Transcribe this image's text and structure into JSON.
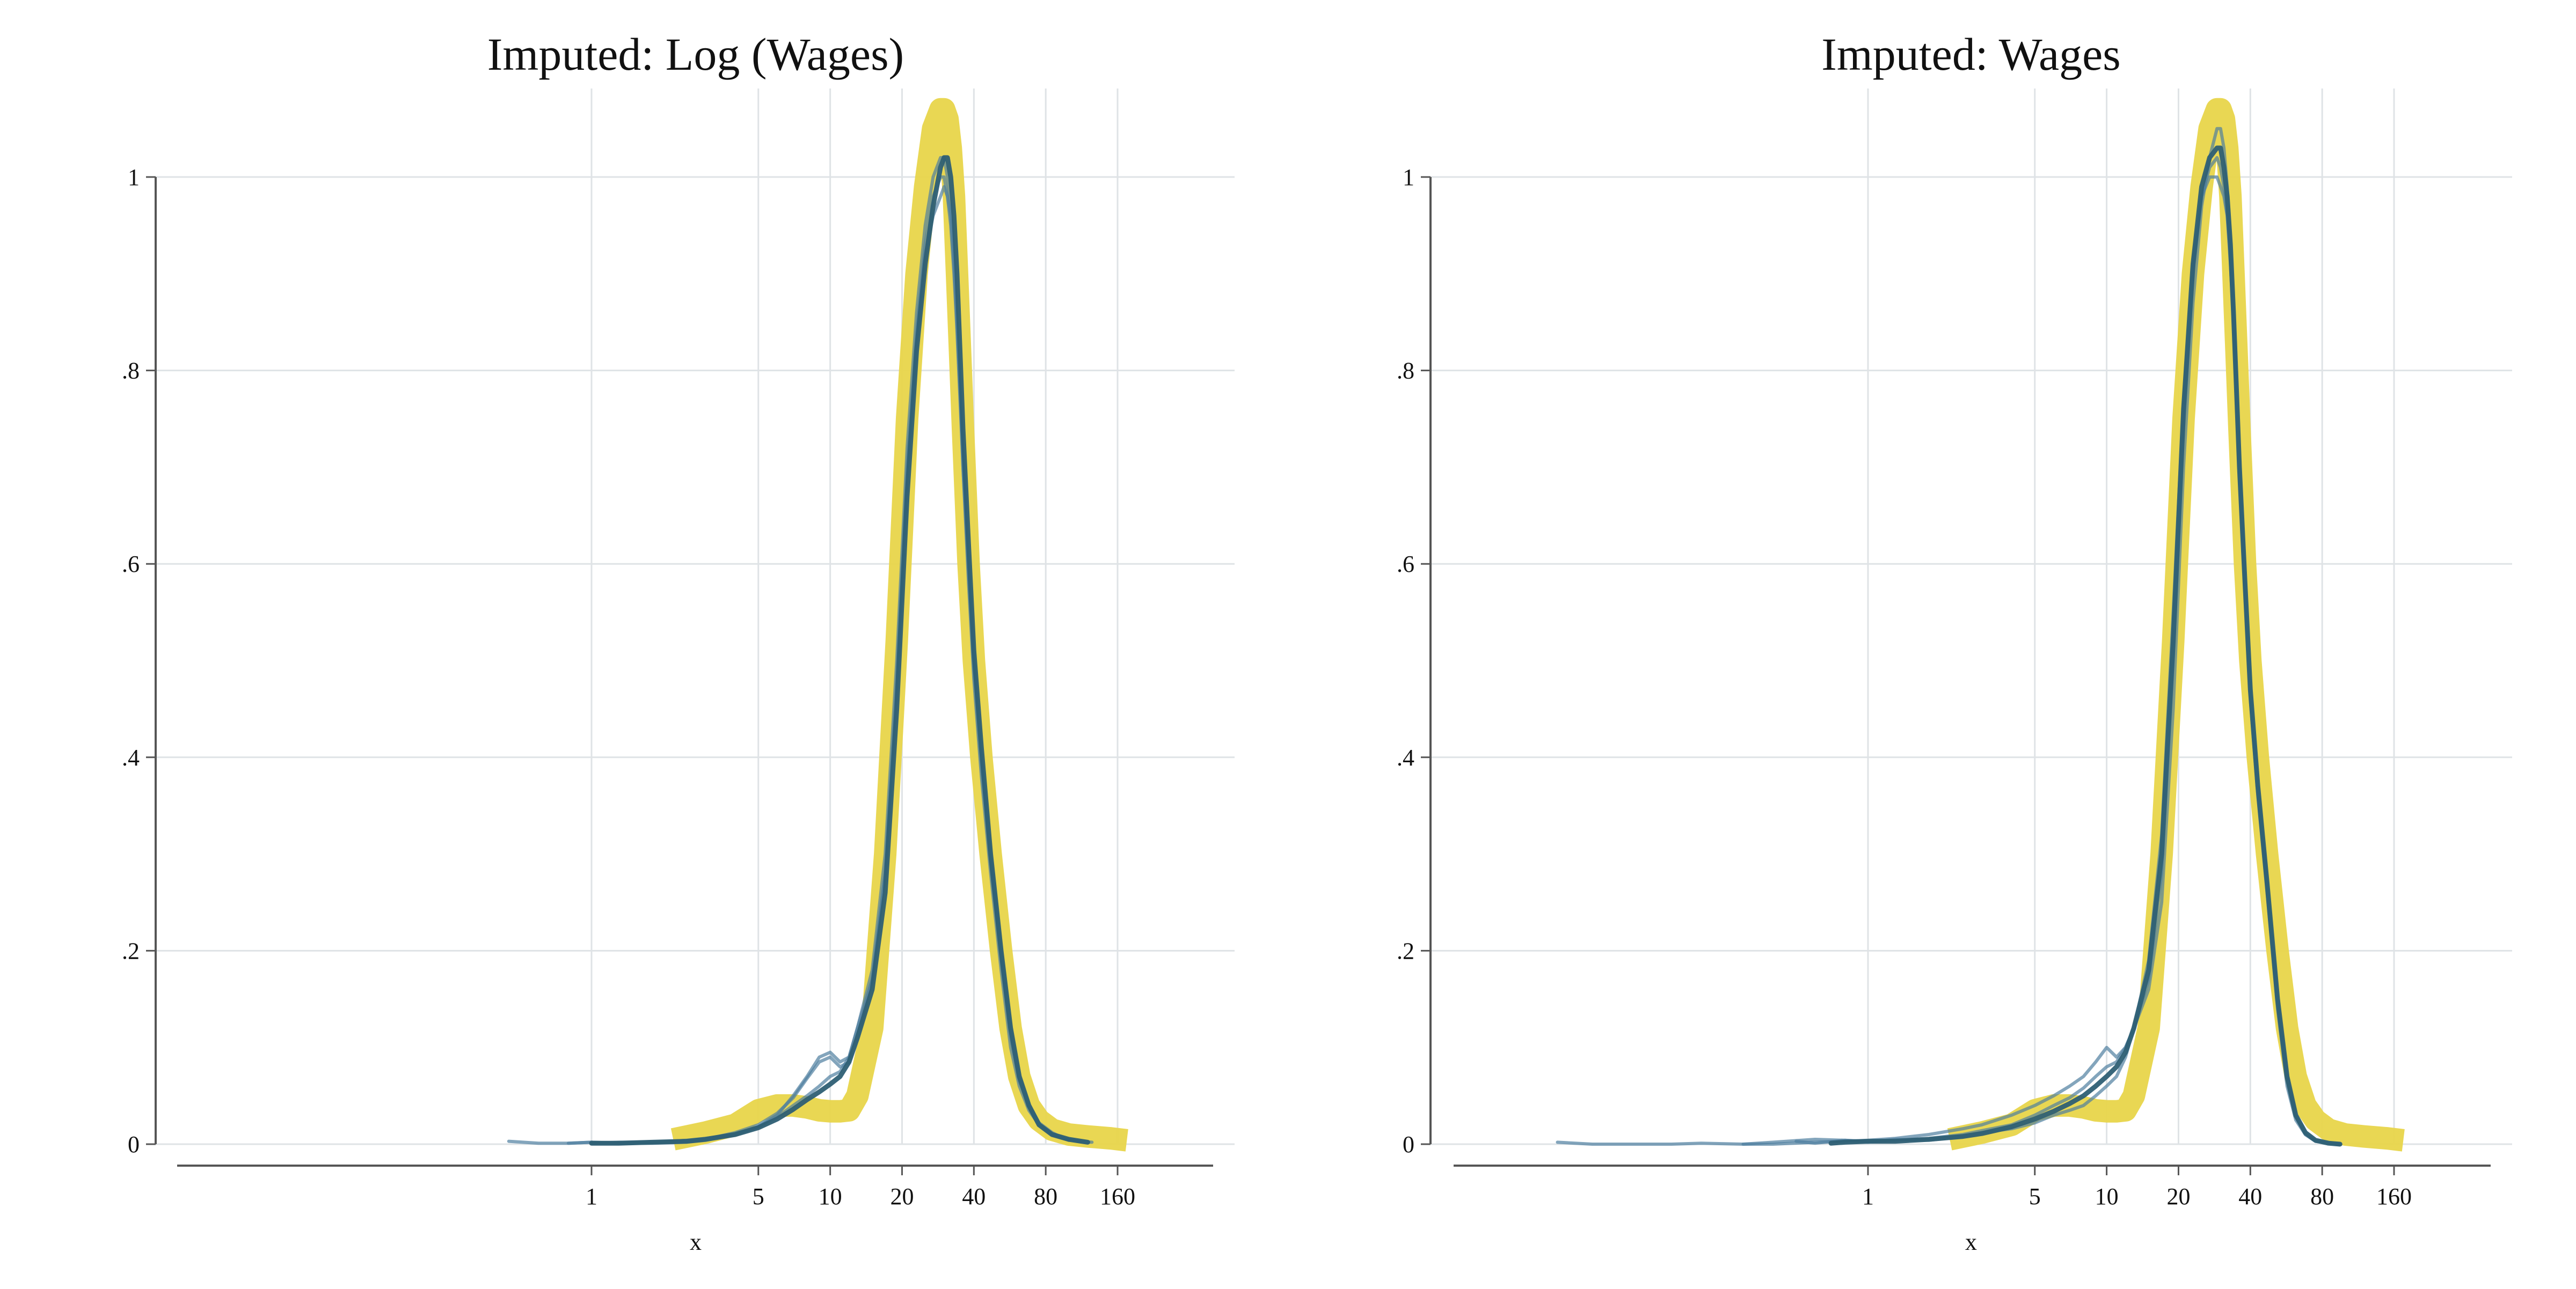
{
  "chart_data": [
    {
      "type": "line",
      "title": "Imputed: Log (Wages)",
      "xlabel": "x",
      "ylabel": "",
      "x_scale": "log",
      "x_ticks": [
        1,
        5,
        10,
        20,
        40,
        80,
        160
      ],
      "x_tick_labels": [
        "1",
        "5",
        "10",
        "20",
        "40",
        "80",
        "160"
      ],
      "ylim": [
        0,
        1
      ],
      "y_ticks": [
        0,
        0.2,
        0.4,
        0.6,
        0.8,
        1
      ],
      "y_tick_labels": [
        "0",
        ".2",
        ".4",
        ".6",
        ".8",
        "1"
      ],
      "grid": true,
      "legend": "none",
      "colors": {
        "observed": "#e8d54a",
        "imputed": "#4e7f9f",
        "imputed_dark": "#2e5f74"
      },
      "series": [
        {
          "role": "observed",
          "x": [
            2.2,
            3,
            4,
            5,
            6,
            7,
            8,
            9,
            10,
            11,
            12,
            13,
            15,
            17,
            19,
            21,
            23,
            25,
            27,
            29,
            30,
            31,
            32,
            33,
            34,
            35,
            36,
            38,
            40,
            43,
            47,
            52,
            57,
            62,
            68,
            75,
            85,
            100,
            120,
            150,
            175
          ],
          "values": [
            0.005,
            0.012,
            0.02,
            0.035,
            0.04,
            0.04,
            0.038,
            0.035,
            0.034,
            0.034,
            0.035,
            0.05,
            0.12,
            0.3,
            0.52,
            0.75,
            0.9,
            0.99,
            1.05,
            1.07,
            1.07,
            1.06,
            1.03,
            0.98,
            0.9,
            0.82,
            0.74,
            0.6,
            0.5,
            0.4,
            0.3,
            0.2,
            0.12,
            0.07,
            0.04,
            0.025,
            0.015,
            0.01,
            0.008,
            0.006,
            0.004
          ]
        },
        {
          "role": "imputed",
          "x": [
            0.45,
            0.6,
            0.8,
            1,
            1.3,
            1.8,
            2.5,
            3,
            4,
            5,
            6,
            7,
            8,
            9,
            10,
            11,
            12,
            13,
            15,
            17,
            19,
            21,
            23,
            25,
            27,
            29,
            30,
            31,
            32,
            33,
            34,
            35,
            36,
            38,
            40,
            43,
            47,
            52,
            57,
            62,
            68,
            75,
            85,
            95,
            110,
            125
          ],
          "values": [
            0.003,
            0.001,
            0.001,
            0.002,
            0.001,
            0.001,
            0.002,
            0.004,
            0.01,
            0.018,
            0.03,
            0.05,
            0.07,
            0.09,
            0.095,
            0.085,
            0.09,
            0.12,
            0.18,
            0.3,
            0.5,
            0.72,
            0.86,
            0.95,
            1.0,
            1.02,
            1.02,
            1.0,
            0.97,
            0.92,
            0.85,
            0.78,
            0.7,
            0.58,
            0.48,
            0.38,
            0.28,
            0.18,
            0.1,
            0.06,
            0.035,
            0.02,
            0.01,
            0.006,
            0.003,
            0.002
          ]
        },
        {
          "role": "imputed",
          "x": [
            0.8,
            1,
            1.3,
            1.8,
            2.5,
            3,
            4,
            5,
            6,
            7,
            8,
            9,
            10,
            11,
            12,
            13,
            15,
            17,
            19,
            21,
            23,
            25,
            27,
            29,
            30,
            31,
            32,
            33,
            34,
            35,
            36,
            38,
            40,
            43,
            47,
            52,
            57,
            62,
            68,
            75,
            85,
            95,
            110
          ],
          "values": [
            0.001,
            0.002,
            0.001,
            0.002,
            0.003,
            0.005,
            0.012,
            0.02,
            0.032,
            0.048,
            0.068,
            0.085,
            0.09,
            0.08,
            0.085,
            0.11,
            0.17,
            0.28,
            0.48,
            0.7,
            0.84,
            0.93,
            0.98,
            1.0,
            1.0,
            0.98,
            0.95,
            0.9,
            0.84,
            0.77,
            0.7,
            0.59,
            0.49,
            0.39,
            0.29,
            0.19,
            0.11,
            0.065,
            0.04,
            0.022,
            0.012,
            0.006,
            0.003
          ]
        },
        {
          "role": "imputed",
          "x": [
            1,
            1.3,
            1.8,
            2.5,
            3,
            4,
            5,
            6,
            7,
            8,
            9,
            10,
            11,
            12,
            13,
            15,
            17,
            19,
            21,
            23,
            25,
            27,
            29,
            30,
            31,
            32,
            33,
            34,
            35,
            36,
            38,
            40,
            43,
            47,
            52,
            57,
            62,
            68,
            75,
            85,
            100
          ],
          "values": [
            0.001,
            0.002,
            0.002,
            0.004,
            0.006,
            0.01,
            0.018,
            0.028,
            0.04,
            0.05,
            0.06,
            0.07,
            0.075,
            0.09,
            0.12,
            0.17,
            0.28,
            0.47,
            0.69,
            0.83,
            0.92,
            0.96,
            0.98,
            0.99,
            0.98,
            0.96,
            0.91,
            0.85,
            0.78,
            0.71,
            0.6,
            0.5,
            0.4,
            0.3,
            0.2,
            0.12,
            0.07,
            0.04,
            0.02,
            0.01,
            0.004
          ]
        },
        {
          "role": "imputed_dark",
          "x": [
            1,
            1.3,
            1.8,
            2.5,
            3,
            4,
            5,
            6,
            7,
            8,
            9,
            10,
            11,
            12,
            13,
            15,
            17,
            19,
            21,
            23,
            25,
            27,
            29,
            30,
            31,
            32,
            33,
            34,
            35,
            36,
            38,
            40,
            43,
            47,
            52,
            57,
            62,
            68,
            75,
            85,
            100,
            120
          ],
          "values": [
            0.001,
            0.001,
            0.002,
            0.003,
            0.005,
            0.01,
            0.017,
            0.026,
            0.036,
            0.046,
            0.054,
            0.062,
            0.07,
            0.085,
            0.11,
            0.16,
            0.26,
            0.45,
            0.67,
            0.82,
            0.91,
            0.97,
            1.01,
            1.02,
            1.02,
            1.0,
            0.96,
            0.9,
            0.82,
            0.74,
            0.62,
            0.51,
            0.41,
            0.3,
            0.2,
            0.12,
            0.07,
            0.04,
            0.02,
            0.01,
            0.005,
            0.002
          ]
        }
      ]
    },
    {
      "type": "line",
      "title": "Imputed: Wages",
      "xlabel": "x",
      "ylabel": "",
      "x_scale": "log",
      "x_ticks": [
        1,
        5,
        10,
        20,
        40,
        80,
        160
      ],
      "x_tick_labels": [
        "1",
        "5",
        "10",
        "20",
        "40",
        "80",
        "160"
      ],
      "ylim": [
        0,
        1
      ],
      "y_ticks": [
        0,
        0.2,
        0.4,
        0.6,
        0.8,
        1
      ],
      "y_tick_labels": [
        "0",
        ".2",
        ".4",
        ".6",
        ".8",
        "1"
      ],
      "grid": true,
      "legend": "none",
      "colors": {
        "observed": "#e8d54a",
        "imputed": "#4e7f9f",
        "imputed_dark": "#2e5f74"
      },
      "series": [
        {
          "role": "observed",
          "x": [
            2.2,
            3,
            4,
            5,
            6,
            7,
            8,
            9,
            10,
            11,
            12,
            13,
            15,
            17,
            19,
            21,
            23,
            25,
            27,
            29,
            30,
            31,
            32,
            33,
            34,
            35,
            36,
            38,
            40,
            43,
            47,
            52,
            57,
            62,
            68,
            75,
            85,
            100,
            120,
            150,
            175
          ],
          "values": [
            0.005,
            0.012,
            0.02,
            0.035,
            0.04,
            0.04,
            0.038,
            0.035,
            0.034,
            0.034,
            0.035,
            0.05,
            0.12,
            0.3,
            0.52,
            0.75,
            0.9,
            0.99,
            1.05,
            1.07,
            1.07,
            1.06,
            1.03,
            0.98,
            0.9,
            0.82,
            0.74,
            0.6,
            0.5,
            0.4,
            0.3,
            0.2,
            0.12,
            0.07,
            0.04,
            0.025,
            0.015,
            0.01,
            0.008,
            0.006,
            0.004
          ]
        },
        {
          "role": "imputed",
          "x": [
            0.05,
            0.07,
            0.1,
            0.15,
            0.2,
            0.3,
            0.4,
            0.6,
            0.8,
            1,
            1.3,
            1.8,
            2.5,
            3,
            4,
            5,
            6,
            7,
            8,
            9,
            10,
            11,
            12,
            13,
            15,
            17,
            19,
            21,
            23,
            25,
            27,
            29,
            30,
            31,
            32,
            33,
            34,
            35,
            36,
            38,
            40,
            43,
            47,
            52,
            57,
            62,
            68,
            75,
            85,
            95
          ],
          "values": [
            0.002,
            0.0,
            0.0,
            0.0,
            0.001,
            0.0,
            0.0,
            0.002,
            0.003,
            0.004,
            0.006,
            0.01,
            0.016,
            0.02,
            0.03,
            0.04,
            0.05,
            0.06,
            0.07,
            0.085,
            0.1,
            0.09,
            0.1,
            0.12,
            0.16,
            0.25,
            0.45,
            0.7,
            0.87,
            0.97,
            1.02,
            1.05,
            1.05,
            1.03,
            0.99,
            0.93,
            0.86,
            0.78,
            0.7,
            0.58,
            0.47,
            0.37,
            0.27,
            0.15,
            0.07,
            0.03,
            0.01,
            0.003,
            0.001,
            0.0
          ]
        },
        {
          "role": "imputed",
          "x": [
            0.3,
            0.4,
            0.6,
            0.8,
            1,
            1.3,
            1.8,
            2.5,
            3,
            4,
            5,
            6,
            7,
            8,
            9,
            10,
            11,
            12,
            13,
            15,
            17,
            19,
            21,
            23,
            25,
            27,
            29,
            30,
            31,
            32,
            33,
            34,
            35,
            36,
            38,
            40,
            43,
            47,
            52,
            57,
            62,
            68,
            75,
            85,
            95
          ],
          "values": [
            0.0,
            0.002,
            0.005,
            0.004,
            0.003,
            0.004,
            0.006,
            0.01,
            0.014,
            0.02,
            0.03,
            0.04,
            0.048,
            0.058,
            0.07,
            0.08,
            0.085,
            0.1,
            0.12,
            0.17,
            0.28,
            0.5,
            0.74,
            0.9,
            0.98,
            1.0,
            1.0,
            0.99,
            0.98,
            0.96,
            0.92,
            0.86,
            0.78,
            0.7,
            0.58,
            0.47,
            0.37,
            0.27,
            0.15,
            0.07,
            0.03,
            0.012,
            0.004,
            0.001,
            0.0
          ]
        },
        {
          "role": "imputed",
          "x": [
            0.5,
            0.6,
            0.8,
            1,
            1.3,
            1.8,
            2.5,
            3,
            4,
            5,
            6,
            7,
            8,
            9,
            10,
            11,
            12,
            13,
            15,
            17,
            19,
            21,
            23,
            25,
            27,
            29,
            30,
            31,
            32,
            33,
            34,
            35,
            36,
            38,
            40,
            43,
            47,
            52,
            57,
            62,
            68,
            75,
            85,
            95
          ],
          "values": [
            0.003,
            0.001,
            0.004,
            0.002,
            0.005,
            0.004,
            0.008,
            0.012,
            0.016,
            0.022,
            0.03,
            0.035,
            0.04,
            0.05,
            0.06,
            0.07,
            0.09,
            0.12,
            0.19,
            0.32,
            0.55,
            0.77,
            0.91,
            0.98,
            1.01,
            1.02,
            1.01,
            0.99,
            0.96,
            0.91,
            0.85,
            0.77,
            0.69,
            0.57,
            0.46,
            0.36,
            0.26,
            0.14,
            0.06,
            0.025,
            0.01,
            0.003,
            0.001,
            0.0
          ]
        },
        {
          "role": "imputed_dark",
          "x": [
            0.7,
            0.8,
            1,
            1.3,
            1.8,
            2.5,
            3,
            4,
            5,
            6,
            7,
            8,
            9,
            10,
            11,
            12,
            13,
            15,
            17,
            19,
            21,
            23,
            25,
            27,
            29,
            30,
            31,
            32,
            33,
            34,
            35,
            36,
            38,
            40,
            43,
            47,
            52,
            57,
            62,
            68,
            75,
            85,
            95
          ],
          "values": [
            0.001,
            0.002,
            0.003,
            0.003,
            0.005,
            0.008,
            0.011,
            0.018,
            0.026,
            0.034,
            0.042,
            0.05,
            0.06,
            0.07,
            0.08,
            0.095,
            0.12,
            0.18,
            0.3,
            0.52,
            0.76,
            0.91,
            0.99,
            1.02,
            1.03,
            1.03,
            1.01,
            0.98,
            0.93,
            0.86,
            0.78,
            0.7,
            0.58,
            0.47,
            0.37,
            0.27,
            0.15,
            0.07,
            0.03,
            0.012,
            0.004,
            0.001,
            0.0
          ]
        }
      ]
    }
  ]
}
